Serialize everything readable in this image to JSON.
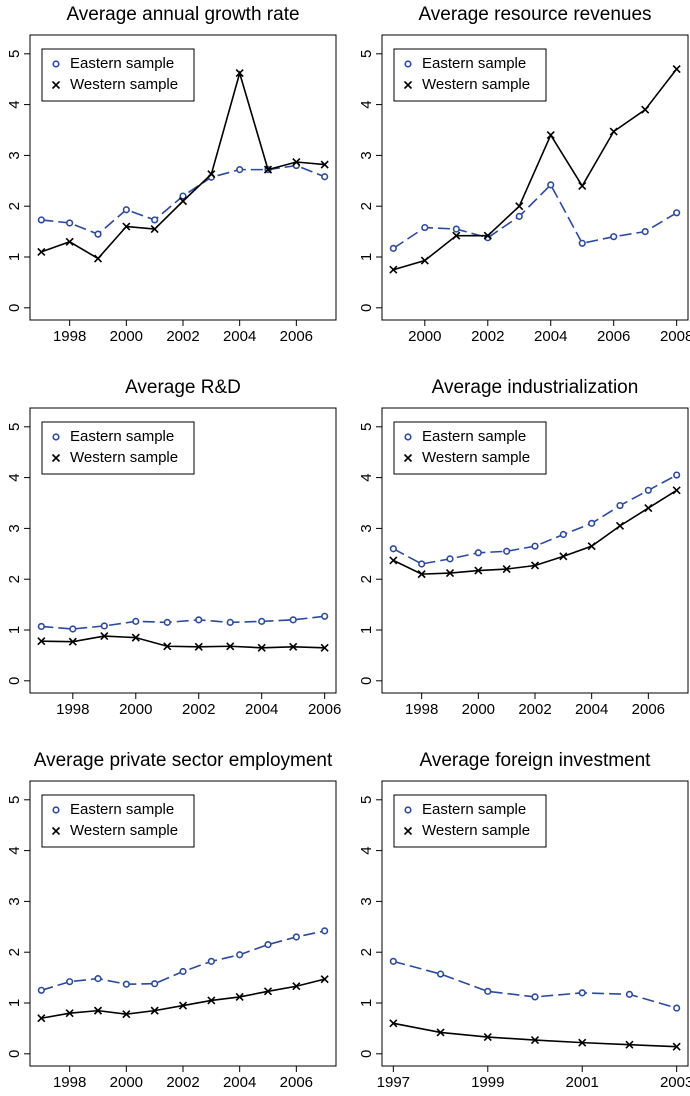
{
  "chart_data": [
    {
      "type": "line",
      "title": "Average annual growth rate",
      "legend": "top-left",
      "x": [
        1997,
        1998,
        1999,
        2000,
        2001,
        2002,
        2003,
        2004,
        2005,
        2006,
        2007
      ],
      "xlim": [
        1996.6,
        2007.4
      ],
      "xticks": [
        1998,
        2000,
        2002,
        2004,
        2006
      ],
      "ylim": [
        -0.24,
        5.37
      ],
      "yticks": [
        0,
        1,
        2,
        3,
        4,
        5
      ],
      "series": [
        {
          "name": "Eastern sample",
          "color": "#2b4a9e",
          "marker": "o",
          "dashed": true,
          "values": [
            1.73,
            1.67,
            1.45,
            1.93,
            1.73,
            2.2,
            2.57,
            2.72,
            2.72,
            2.8,
            2.58
          ]
        },
        {
          "name": "Western sample",
          "color": "#000000",
          "marker": "x",
          "dashed": false,
          "values": [
            1.1,
            1.3,
            0.97,
            1.6,
            1.55,
            2.1,
            2.63,
            4.62,
            2.72,
            2.87,
            2.82
          ]
        }
      ]
    },
    {
      "type": "line",
      "title": "Average resource revenues",
      "legend": "top-left",
      "x": [
        1999,
        2000,
        2001,
        2002,
        2003,
        2004,
        2005,
        2006,
        2007,
        2008
      ],
      "xlim": [
        1998.64,
        2008.36
      ],
      "xticks": [
        2000,
        2002,
        2004,
        2006,
        2008
      ],
      "ylim": [
        -0.24,
        5.37
      ],
      "yticks": [
        0,
        1,
        2,
        3,
        4,
        5
      ],
      "series": [
        {
          "name": "Eastern sample",
          "color": "#2b4a9e",
          "marker": "o",
          "dashed": true,
          "values": [
            1.17,
            1.58,
            1.55,
            1.38,
            1.8,
            2.42,
            1.27,
            1.4,
            1.5,
            1.87
          ]
        },
        {
          "name": "Western sample",
          "color": "#000000",
          "marker": "x",
          "dashed": false,
          "values": [
            0.75,
            0.93,
            1.42,
            1.42,
            2.0,
            3.4,
            2.4,
            3.47,
            3.9,
            4.7
          ]
        }
      ]
    },
    {
      "type": "line",
      "title": "Average R&D",
      "legend": "top-left",
      "x": [
        1997,
        1998,
        1999,
        2000,
        2001,
        2002,
        2003,
        2004,
        2005,
        2006
      ],
      "xlim": [
        1996.64,
        2006.36
      ],
      "xticks": [
        1998,
        2000,
        2002,
        2004,
        2006
      ],
      "ylim": [
        -0.24,
        5.37
      ],
      "yticks": [
        0,
        1,
        2,
        3,
        4,
        5
      ],
      "series": [
        {
          "name": "Eastern sample",
          "color": "#2b4a9e",
          "marker": "o",
          "dashed": true,
          "values": [
            1.07,
            1.02,
            1.08,
            1.17,
            1.15,
            1.2,
            1.15,
            1.17,
            1.2,
            1.27
          ]
        },
        {
          "name": "Western sample",
          "color": "#000000",
          "marker": "x",
          "dashed": false,
          "values": [
            0.78,
            0.77,
            0.88,
            0.85,
            0.68,
            0.67,
            0.68,
            0.65,
            0.67,
            0.65
          ]
        }
      ]
    },
    {
      "type": "line",
      "title": "Average industrialization",
      "legend": "top-left",
      "x": [
        1997,
        1998,
        1999,
        2000,
        2001,
        2002,
        2003,
        2004,
        2005,
        2006,
        2007
      ],
      "xlim": [
        1996.6,
        2007.4
      ],
      "xticks": [
        1998,
        2000,
        2002,
        2004,
        2006
      ],
      "ylim": [
        -0.24,
        5.37
      ],
      "yticks": [
        0,
        1,
        2,
        3,
        4,
        5
      ],
      "series": [
        {
          "name": "Eastern sample",
          "color": "#2b4a9e",
          "marker": "o",
          "dashed": true,
          "values": [
            2.6,
            2.3,
            2.4,
            2.52,
            2.55,
            2.65,
            2.88,
            3.1,
            3.45,
            3.75,
            4.05
          ]
        },
        {
          "name": "Western sample",
          "color": "#000000",
          "marker": "x",
          "dashed": false,
          "values": [
            2.37,
            2.1,
            2.12,
            2.17,
            2.2,
            2.27,
            2.45,
            2.65,
            3.05,
            3.4,
            3.75
          ]
        }
      ]
    },
    {
      "type": "line",
      "title": "Average private sector employment",
      "legend": "top-left",
      "x": [
        1997,
        1998,
        1999,
        2000,
        2001,
        2002,
        2003,
        2004,
        2005,
        2006,
        2007
      ],
      "xlim": [
        1996.6,
        2007.4
      ],
      "xticks": [
        1998,
        2000,
        2002,
        2004,
        2006
      ],
      "ylim": [
        -0.24,
        5.37
      ],
      "yticks": [
        0,
        1,
        2,
        3,
        4,
        5
      ],
      "series": [
        {
          "name": "Eastern sample",
          "color": "#2b4a9e",
          "marker": "o",
          "dashed": true,
          "values": [
            1.25,
            1.42,
            1.48,
            1.37,
            1.38,
            1.62,
            1.82,
            1.95,
            2.15,
            2.3,
            2.42
          ]
        },
        {
          "name": "Western sample",
          "color": "#000000",
          "marker": "x",
          "dashed": false,
          "values": [
            0.7,
            0.8,
            0.85,
            0.78,
            0.85,
            0.95,
            1.05,
            1.12,
            1.23,
            1.33,
            1.47
          ]
        }
      ]
    },
    {
      "type": "line",
      "title": "Average foreign investment",
      "legend": "top-left",
      "x": [
        1997,
        1998,
        1999,
        2000,
        2001,
        2002,
        2003
      ],
      "xlim": [
        1996.76,
        2003.24
      ],
      "xticks": [
        1997,
        1999,
        2001,
        2003
      ],
      "ylim": [
        -0.24,
        5.37
      ],
      "yticks": [
        0,
        1,
        2,
        3,
        4,
        5
      ],
      "series": [
        {
          "name": "Eastern sample",
          "color": "#2b4a9e",
          "marker": "o",
          "dashed": true,
          "values": [
            1.82,
            1.57,
            1.23,
            1.12,
            1.2,
            1.17,
            0.9
          ]
        },
        {
          "name": "Western sample",
          "color": "#000000",
          "marker": "x",
          "dashed": false,
          "values": [
            0.6,
            0.42,
            0.33,
            0.27,
            0.22,
            0.18,
            0.14
          ]
        }
      ]
    }
  ]
}
